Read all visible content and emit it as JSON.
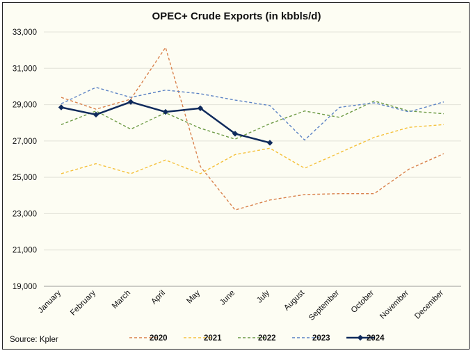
{
  "chart_data": {
    "type": "line",
    "title": "OPEC+ Crude Exports (in kbbls/d)",
    "xlabel": "",
    "ylabel": "",
    "ylim": [
      19000,
      33000
    ],
    "yticks": [
      19000,
      21000,
      23000,
      25000,
      27000,
      29000,
      31000,
      33000
    ],
    "ytick_labels": [
      "19,000",
      "21,000",
      "23,000",
      "25,000",
      "27,000",
      "29,000",
      "31,000",
      "33,000"
    ],
    "grid": true,
    "legend_position": "bottom",
    "categories": [
      "January",
      "February",
      "March",
      "April",
      "May",
      "June",
      "July",
      "August",
      "September",
      "October",
      "November",
      "December"
    ],
    "series": [
      {
        "name": "2020",
        "color": "#d9814b",
        "dash": "dashed",
        "marker": "none",
        "values": [
          29400,
          28750,
          29300,
          32150,
          25600,
          23200,
          23750,
          24050,
          24100,
          24100,
          25450,
          26300
        ]
      },
      {
        "name": "2021",
        "color": "#f5c13c",
        "dash": "dashed",
        "marker": "none",
        "values": [
          25200,
          25750,
          25200,
          25950,
          25200,
          26250,
          26600,
          25500,
          26350,
          27200,
          27750,
          27900
        ]
      },
      {
        "name": "2022",
        "color": "#6d9a45",
        "dash": "dashed",
        "marker": "none",
        "values": [
          27900,
          28650,
          27650,
          28550,
          27700,
          27100,
          27950,
          28650,
          28300,
          29200,
          28650,
          28500
        ]
      },
      {
        "name": "2023",
        "color": "#5b82c4",
        "dash": "dashed",
        "marker": "none",
        "values": [
          29050,
          29950,
          29400,
          29800,
          29600,
          29250,
          28950,
          27050,
          28850,
          29100,
          28600,
          29150
        ]
      },
      {
        "name": "2024",
        "color": "#0f2a5c",
        "dash": "solid",
        "marker": "diamond",
        "values": [
          28850,
          28450,
          29150,
          28600,
          28800,
          27400,
          26900,
          null,
          null,
          null,
          null,
          null
        ]
      }
    ]
  },
  "source": "Source: Kpler"
}
